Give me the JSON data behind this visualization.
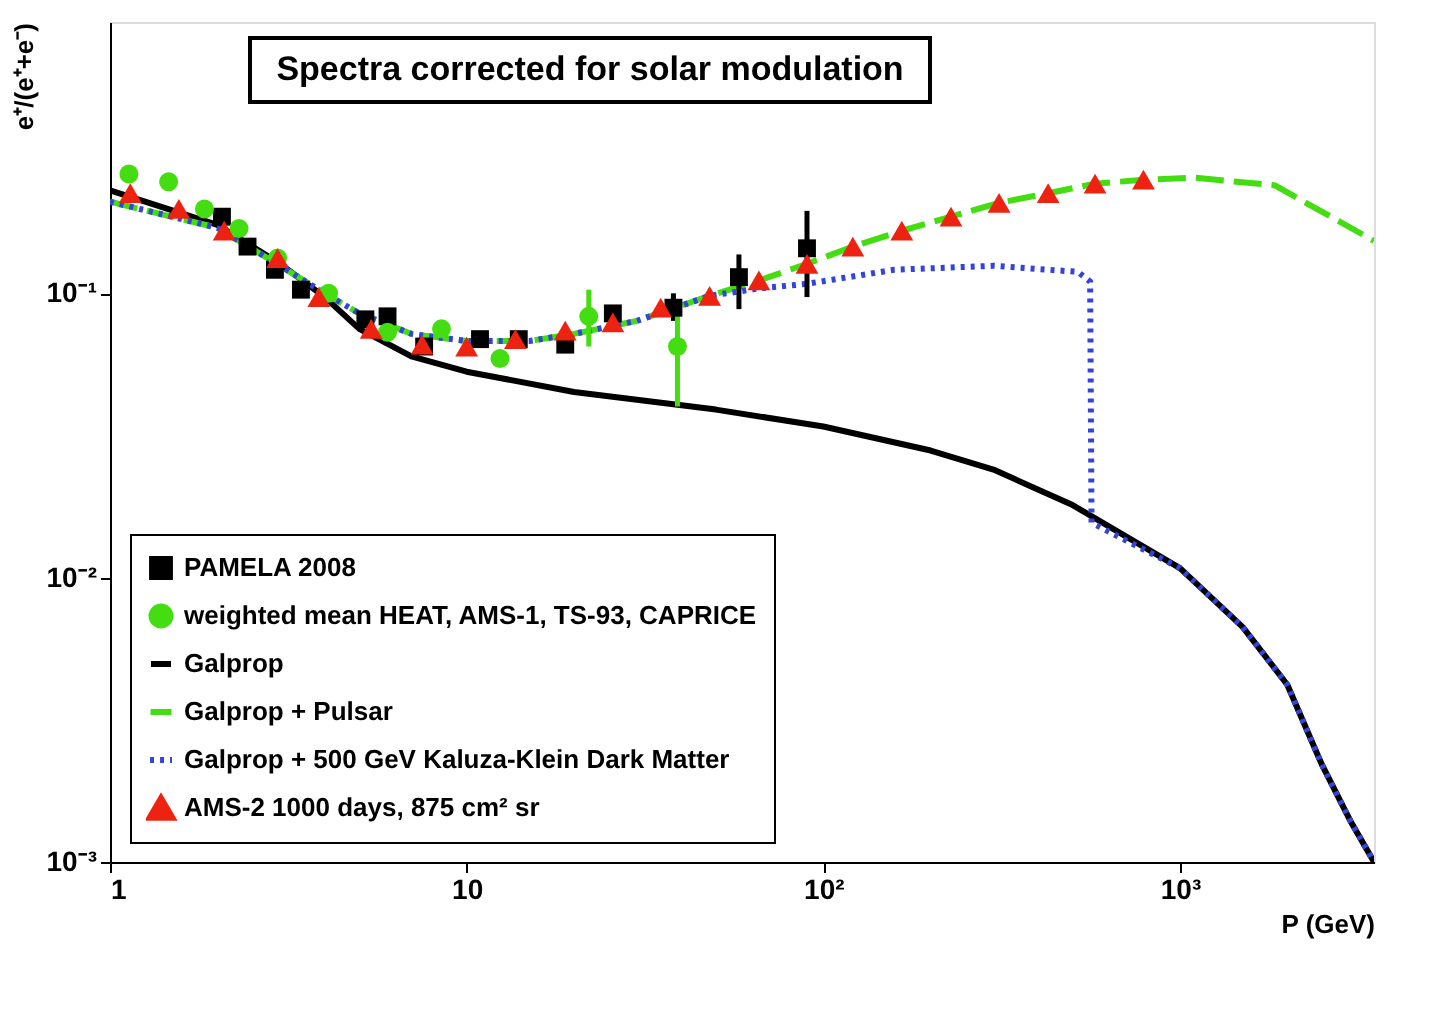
{
  "chart_data": {
    "type": "line",
    "title": "Spectra corrected for solar modulation",
    "xlabel": "P (GeV)",
    "ylabel": "e⁺/(e⁺+e⁻)",
    "log": "xy",
    "xlim": [
      1,
      3500
    ],
    "ylim": [
      0.001,
      0.9
    ],
    "xticks": [
      1,
      10,
      {
        "value": 100,
        "label": "10²"
      },
      {
        "value": 1000,
        "label": "10³"
      }
    ],
    "yticks": [
      {
        "value": 0.001,
        "label": "10⁻³"
      },
      {
        "value": 0.01,
        "label": "10⁻²"
      },
      {
        "value": 0.1,
        "label": "10⁻¹"
      }
    ],
    "legend": "bottom left",
    "series": [
      {
        "name": "PAMELA 2008",
        "type": "scatter",
        "marker": "square",
        "color": "#000000",
        "x": [
          2.06,
          2.43,
          2.9,
          3.43,
          5.2,
          6.0,
          7.6,
          10.9,
          14,
          18.9,
          25.7,
          38,
          58,
          90
        ],
        "values": [
          0.186,
          0.146,
          0.121,
          0.103,
          0.081,
          0.083,
          0.065,
          0.069,
          0.069,
          0.066,
          0.085,
          0.089,
          0.114,
          0.144
        ],
        "errors": [
          null,
          null,
          null,
          null,
          null,
          null,
          null,
          null,
          null,
          null,
          null,
          [
            0.08,
            0.1
          ],
          [
            0.088,
            0.137
          ],
          [
            0.097,
            0.195
          ]
        ]
      },
      {
        "name": "weighted mean HEAT, AMS-1, TS-93, CAPRICE",
        "type": "scatter",
        "marker": "circle",
        "color": "#44dd11",
        "x": [
          1.13,
          1.46,
          1.84,
          2.3,
          2.95,
          4.1,
          6,
          8.5,
          12.4,
          22,
          39
        ],
        "values": [
          0.263,
          0.247,
          0.198,
          0.169,
          0.133,
          0.1,
          0.073,
          0.075,
          0.059,
          0.083,
          0.065
        ],
        "errors": [
          null,
          null,
          null,
          null,
          null,
          null,
          null,
          null,
          null,
          [
            0.065,
            0.103
          ],
          [
            0.04,
            0.089
          ]
        ]
      },
      {
        "name": "Galprop",
        "line_style": "solid",
        "color": "#000000",
        "x": [
          1,
          2,
          3,
          4,
          5,
          7,
          10,
          20,
          50,
          100,
          200,
          300,
          500,
          1000,
          1500,
          2000,
          2500,
          3000,
          3500
        ],
        "values": [
          0.23,
          0.174,
          0.127,
          0.097,
          0.075,
          0.06,
          0.053,
          0.045,
          0.039,
          0.034,
          0.028,
          0.024,
          0.018,
          0.0108,
          0.0067,
          0.0042,
          0.0022,
          0.0014,
          0.001
        ]
      },
      {
        "name": "Galprop + Pulsar",
        "line_style": "dashed",
        "color": "#44dd11",
        "x": [
          1,
          2,
          3,
          4,
          5,
          7,
          10,
          15,
          20,
          30,
          48,
          66,
          90,
          121,
          166,
          228,
          311,
          427,
          578,
          790,
          1100,
          1840,
          3500
        ],
        "values": [
          0.21,
          0.17,
          0.125,
          0.1,
          0.085,
          0.072,
          0.068,
          0.068,
          0.072,
          0.08,
          0.098,
          0.111,
          0.127,
          0.146,
          0.166,
          0.186,
          0.208,
          0.225,
          0.243,
          0.251,
          0.255,
          0.24,
          0.153
        ]
      },
      {
        "name": "Galprop + 500 GeV Kaluza-Klein Dark Matter",
        "line_style": "dotted",
        "color": "#3344dd",
        "x": [
          1,
          2,
          3,
          4,
          5,
          7,
          10,
          15,
          20,
          30,
          48,
          66,
          90,
          158,
          300,
          517,
          560,
          565,
          1000,
          1500,
          2000,
          2500,
          3000,
          3500
        ],
        "values": [
          0.21,
          0.17,
          0.125,
          0.1,
          0.085,
          0.072,
          0.068,
          0.068,
          0.072,
          0.08,
          0.098,
          0.104,
          0.108,
          0.121,
          0.125,
          0.119,
          0.11,
          0.0156,
          0.0108,
          0.0067,
          0.0042,
          0.0022,
          0.0014,
          0.001
        ]
      },
      {
        "name": "AMS-2 1000 days,   875 cm² sr",
        "type": "scatter",
        "marker": "triangle",
        "color": "#ee2211",
        "x": [
          1.14,
          1.56,
          2.09,
          2.95,
          3.85,
          5.4,
          7.5,
          10,
          13.7,
          18.9,
          25.7,
          35,
          48,
          66,
          90,
          121,
          166,
          228,
          311,
          427,
          578,
          790
        ],
        "values": [
          0.225,
          0.198,
          0.166,
          0.133,
          0.097,
          0.075,
          0.066,
          0.065,
          0.069,
          0.074,
          0.079,
          0.089,
          0.098,
          0.111,
          0.127,
          0.146,
          0.166,
          0.186,
          0.208,
          0.225,
          0.243,
          0.251
        ]
      }
    ]
  }
}
